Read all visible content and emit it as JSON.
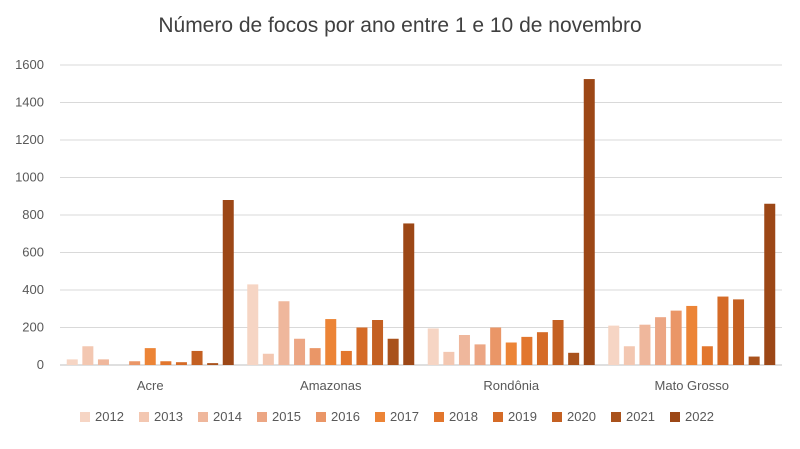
{
  "chart_data": {
    "type": "bar",
    "title": "Número de focos por ano entre 1 e 10 de novembro",
    "xlabel": "",
    "ylabel": "",
    "ylim": [
      0,
      1600
    ],
    "yticks": [
      0,
      200,
      400,
      600,
      800,
      1000,
      1200,
      1400,
      1600
    ],
    "grid": true,
    "legend_position": "bottom",
    "categories": [
      "Acre",
      "Amazonas",
      "Rondônia",
      "Mato Grosso"
    ],
    "series": [
      {
        "name": "2012",
        "color": "#f6d5c4",
        "values": [
          30,
          430,
          195,
          210
        ]
      },
      {
        "name": "2013",
        "color": "#f3c7b1",
        "values": [
          100,
          60,
          70,
          100
        ]
      },
      {
        "name": "2014",
        "color": "#efb79c",
        "values": [
          30,
          340,
          160,
          215
        ]
      },
      {
        "name": "2015",
        "color": "#eca684",
        "values": [
          0,
          140,
          110,
          255
        ]
      },
      {
        "name": "2016",
        "color": "#ea9667",
        "values": [
          20,
          90,
          200,
          290
        ]
      },
      {
        "name": "2017",
        "color": "#ec8436",
        "values": [
          90,
          245,
          120,
          315
        ]
      },
      {
        "name": "2018",
        "color": "#e2762d",
        "values": [
          20,
          75,
          150,
          100
        ]
      },
      {
        "name": "2019",
        "color": "#d56b27",
        "values": [
          15,
          200,
          175,
          365
        ]
      },
      {
        "name": "2020",
        "color": "#c46022",
        "values": [
          75,
          240,
          240,
          350
        ]
      },
      {
        "name": "2021",
        "color": "#a9521c",
        "values": [
          10,
          140,
          65,
          45
        ]
      },
      {
        "name": "2022",
        "color": "#9c4716",
        "values": [
          880,
          755,
          1525,
          860
        ]
      }
    ]
  }
}
